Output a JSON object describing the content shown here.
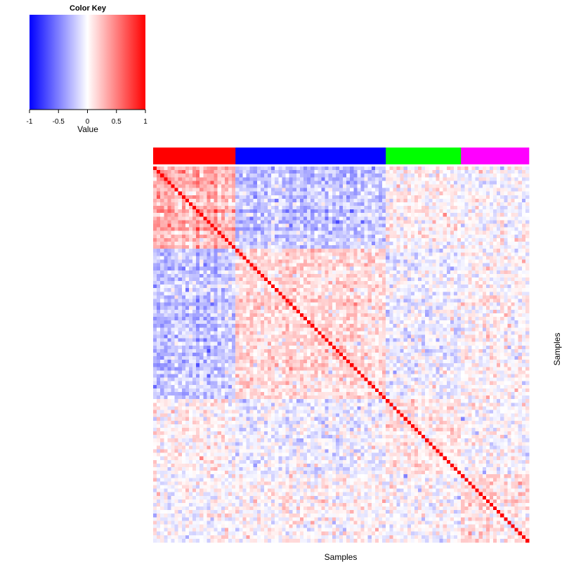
{
  "chart_data": {
    "type": "heatmap",
    "title": "",
    "xlabel": "Samples",
    "ylabel": "Samples",
    "matrix_kind": "sample-sample correlation (symmetric, diagonal = 1)",
    "n_samples": 105,
    "value_range": [
      -1,
      1
    ],
    "diagonal_value": 1,
    "color_key": {
      "title": "Color Key",
      "label": "Value",
      "ticks": [
        "-1",
        "-0.5",
        "0",
        "0.5",
        "1"
      ],
      "tick_values": [
        -1,
        -0.5,
        0,
        0.5,
        1
      ],
      "colors": [
        "#0000ff",
        "#ffffff",
        "#ff0000"
      ]
    },
    "groups": [
      {
        "name": "red group",
        "color": "#ff0000",
        "count": 23
      },
      {
        "name": "blue group",
        "color": "#0000ff",
        "count": 42
      },
      {
        "name": "green group",
        "color": "#00ff00",
        "count": 21
      },
      {
        "name": "magenta group",
        "color": "#ff00ff",
        "count": 19
      }
    ],
    "block_mean_correlation": [
      [
        0.3,
        -0.22,
        0.04,
        -0.02
      ],
      [
        -0.22,
        0.14,
        -0.06,
        0.03
      ],
      [
        0.04,
        -0.06,
        0.1,
        -0.02
      ],
      [
        -0.02,
        0.03,
        -0.02,
        0.12
      ]
    ],
    "cell_noise_sd": 0.12
  }
}
